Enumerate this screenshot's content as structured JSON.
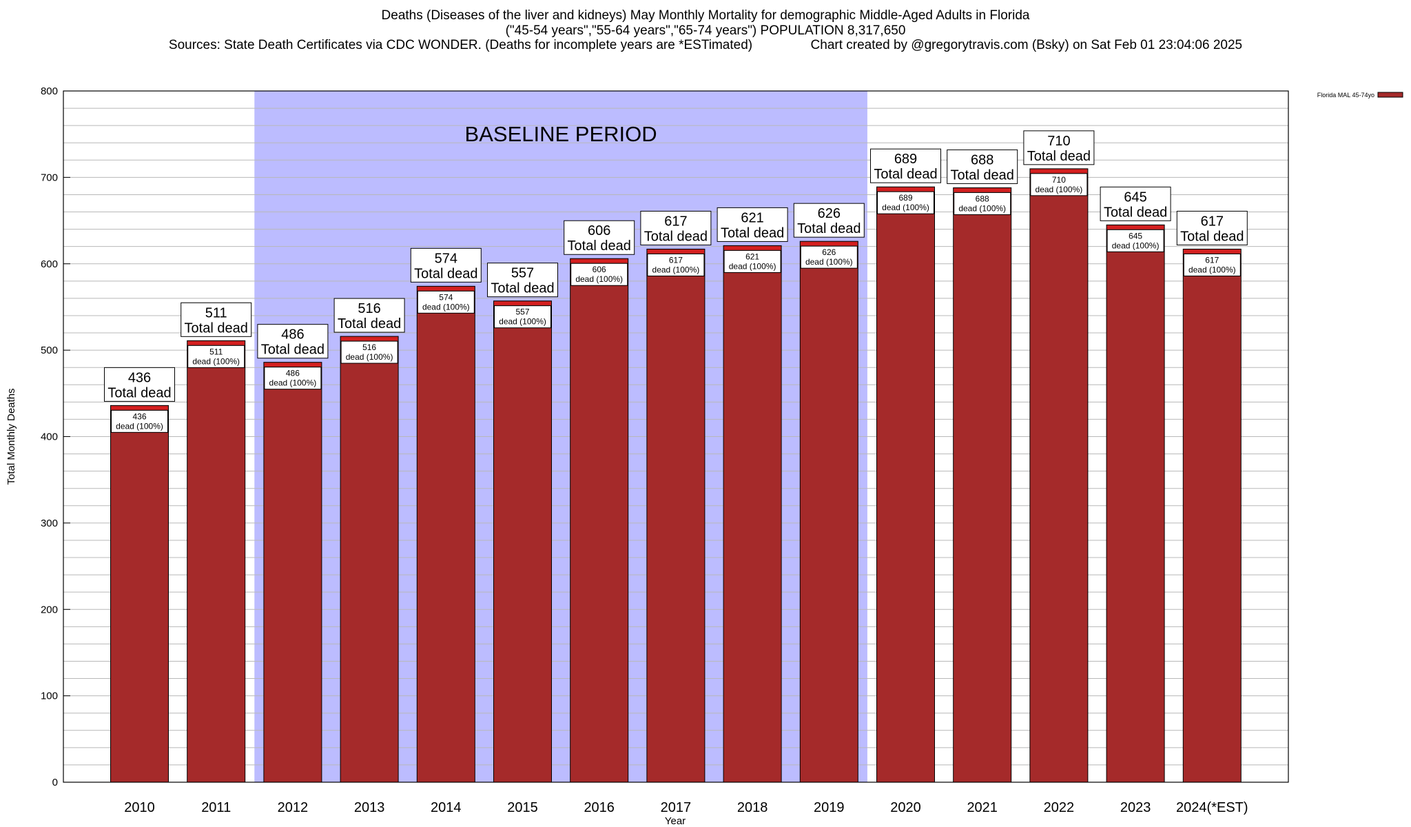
{
  "title": {
    "line1": "Deaths (Diseases of the liver and kidneys) May Monthly Mortality for demographic Middle-Aged Adults in Florida",
    "line2": "(\"45-54 years\",\"55-64 years\",\"65-74 years\") POPULATION 8,317,650",
    "line3": "Sources: State Death Certificates via CDC WONDER. (Deaths for incomplete years are *ESTimated)                Chart created by @gregorytravis.com (Bsky) on Sat Feb 01 23:04:06 2025"
  },
  "chart_data": {
    "type": "bar",
    "xlabel": "Year",
    "ylabel": "Total Monthly Deaths",
    "ylim": [
      0,
      800
    ],
    "yticks": [
      0,
      100,
      200,
      300,
      400,
      500,
      600,
      700,
      800
    ],
    "grid": true,
    "legend": {
      "position": "top-right",
      "entries": [
        "Florida MAL 45-74yo"
      ]
    },
    "categories": [
      "2010",
      "2011",
      "2012",
      "2013",
      "2014",
      "2015",
      "2016",
      "2017",
      "2018",
      "2019",
      "2020",
      "2021",
      "2022",
      "2023",
      "2024(*EST)"
    ],
    "series": [
      {
        "name": "Florida MAL 45-74yo",
        "values": [
          436,
          511,
          486,
          516,
          574,
          557,
          606,
          617,
          621,
          626,
          689,
          688,
          710,
          645,
          617
        ]
      }
    ],
    "bar_labels": {
      "total_suffix": "Total dead",
      "segment_suffix": "dead (100%)"
    },
    "baseline_period": {
      "label": "BASELINE PERIOD",
      "start": "2012",
      "end": "2019"
    },
    "colors": {
      "bar": "#a52a2a",
      "bar_top": "#d41f1f",
      "baseline": "#bcbcff",
      "grid": "#b8b8b8"
    }
  }
}
